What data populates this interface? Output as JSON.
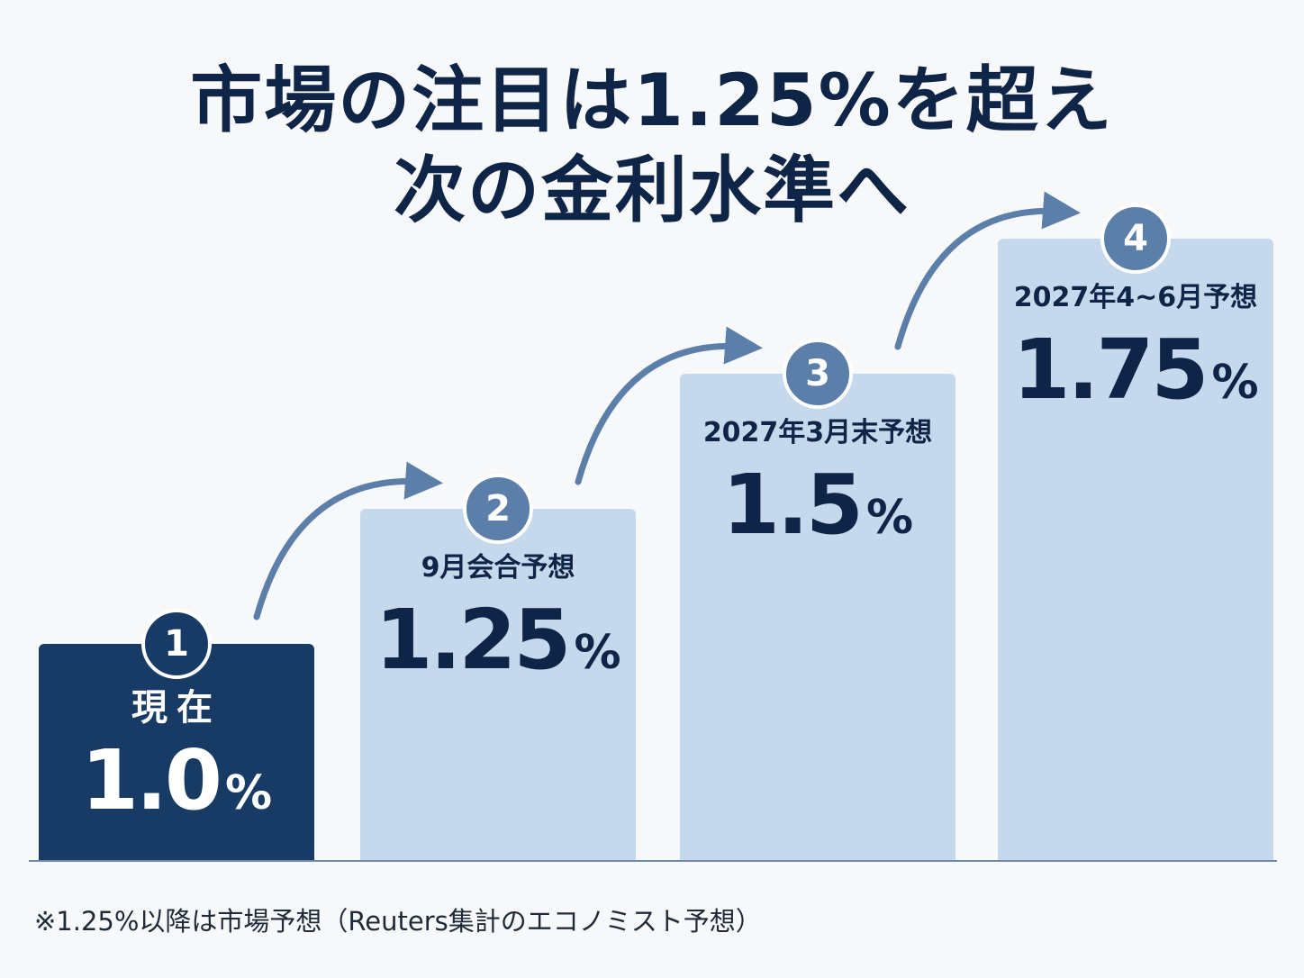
{
  "title": {
    "line1": "市場の注目は1.25%を超え",
    "line2": "次の金利水準へ"
  },
  "footnote": "※1.25%以降は市場予想（Reuters集計のエコノミスト予想）",
  "colors": {
    "current_bar": "#173b64",
    "forecast_bar": "#c6d9ec",
    "badge_current": "#173b64",
    "badge_forecast": "#5b7fa9",
    "arrow": "#5b7fa9",
    "text_dark": "#0f2547"
  },
  "chart_data": {
    "type": "bar",
    "title": "市場の注目は1.25%を超え 次の金利水準へ",
    "categories": [
      "現在",
      "9月会合予想",
      "2027年3月末予想",
      "2027年4~6月予想"
    ],
    "steps": [
      "1",
      "2",
      "3",
      "4"
    ],
    "values": [
      1.0,
      1.25,
      1.5,
      1.75
    ],
    "value_labels": [
      "1.0",
      "1.25",
      "1.5",
      "1.75"
    ],
    "unit": "%",
    "highlight_index": 0,
    "arrows_between_bars": true,
    "grid": false,
    "legend": "none"
  }
}
